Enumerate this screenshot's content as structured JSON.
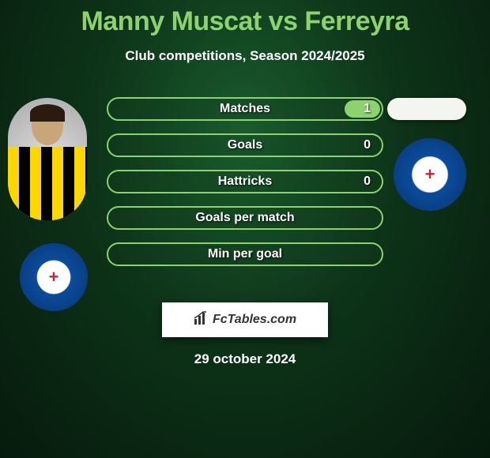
{
  "title": "Manny Muscat vs Ferreyra",
  "subtitle": "Club competitions, Season 2024/2025",
  "colors": {
    "accent": "#8ed16f",
    "bg_inner": "#1a5c2e",
    "bg_mid": "#0d3318",
    "bg_outer": "#061a0c",
    "club_blue_outer": "#07356f",
    "club_blue_inner": "#0b4b9c",
    "jersey_yellow": "#ffd700",
    "jersey_black": "#000000",
    "text": "#ffffff"
  },
  "stats": [
    {
      "label": "Matches",
      "value_right": "1",
      "fill_right_pct": 13
    },
    {
      "label": "Goals",
      "value_right": "0",
      "fill_right_pct": 0
    },
    {
      "label": "Hattricks",
      "value_right": "0",
      "fill_right_pct": 0
    },
    {
      "label": "Goals per match",
      "value_right": "",
      "fill_right_pct": 0
    },
    {
      "label": "Min per goal",
      "value_right": "",
      "fill_right_pct": 0
    }
  ],
  "footer_brand": "FcTables.com",
  "date": "29 october 2024"
}
